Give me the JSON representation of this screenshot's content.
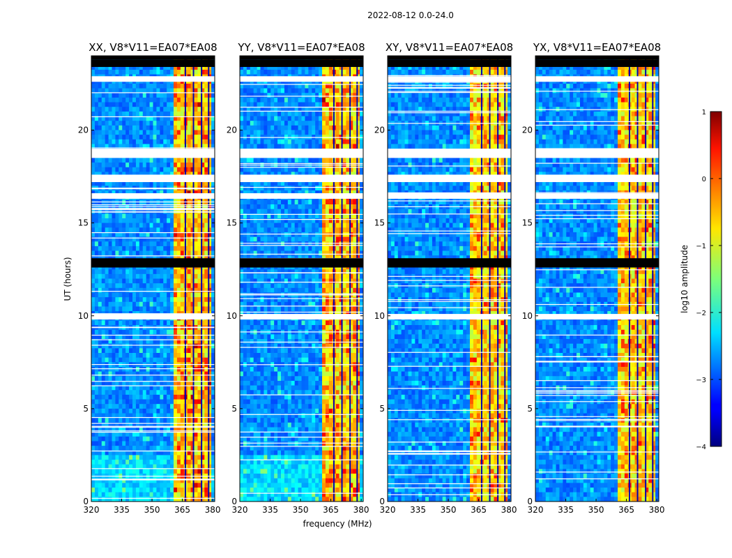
{
  "chart_data": {
    "type": "heatmap",
    "suptitle": "2022-08-12 0.0-24.0",
    "xlabel": "frequency (MHz)",
    "ylabel": "UT (hours)",
    "xlim": [
      320,
      381
    ],
    "ylim": [
      0,
      24
    ],
    "xticks": [
      320,
      335,
      350,
      365,
      380
    ],
    "yticks": [
      0,
      5,
      10,
      15,
      20
    ],
    "flagged_time_bands_hours": [
      [
        23.4,
        23.8
      ],
      [
        22.6,
        22.9
      ],
      [
        18.5,
        19.0
      ],
      [
        17.2,
        17.6
      ],
      [
        16.3,
        16.6
      ],
      [
        12.6,
        13.1
      ],
      [
        9.8,
        10.1
      ]
    ],
    "bright_frequency_band_mhz": [
      361,
      380
    ],
    "panels": [
      {
        "title": "XX, V8*V11=EA07*EA08",
        "polarization": "XX"
      },
      {
        "title": "YY, V8*V11=EA07*EA08",
        "polarization": "YY"
      },
      {
        "title": "XY, V8*V11=EA07*EA08",
        "polarization": "XY"
      },
      {
        "title": "YX, V8*V11=EA07*EA08",
        "polarization": "YX"
      }
    ],
    "colorbar": {
      "label": "log10 amplitude",
      "range": [
        -4,
        1
      ],
      "ticks": [
        "1",
        "0",
        "−1",
        "−2",
        "−3",
        "−4"
      ],
      "colormap": "jet"
    }
  }
}
